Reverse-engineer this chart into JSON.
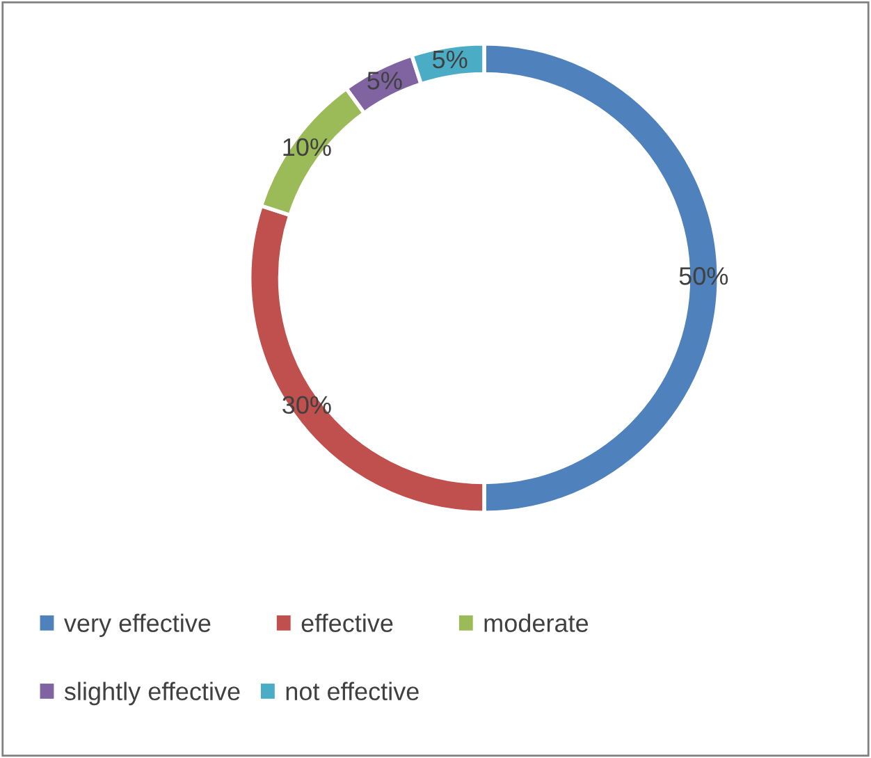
{
  "chart_data": {
    "type": "donut",
    "categories": [
      "very effective",
      "effective",
      "moderate",
      "slightly effective",
      "not effective"
    ],
    "values": [
      50,
      30,
      10,
      5,
      5
    ],
    "colors": [
      "#4f81bd",
      "#c0504d",
      "#9bbb59",
      "#8064a2",
      "#4bacc6"
    ],
    "value_labels": [
      "50%",
      "30%",
      "10%",
      "5%",
      "5%"
    ],
    "legend": "bottom"
  }
}
